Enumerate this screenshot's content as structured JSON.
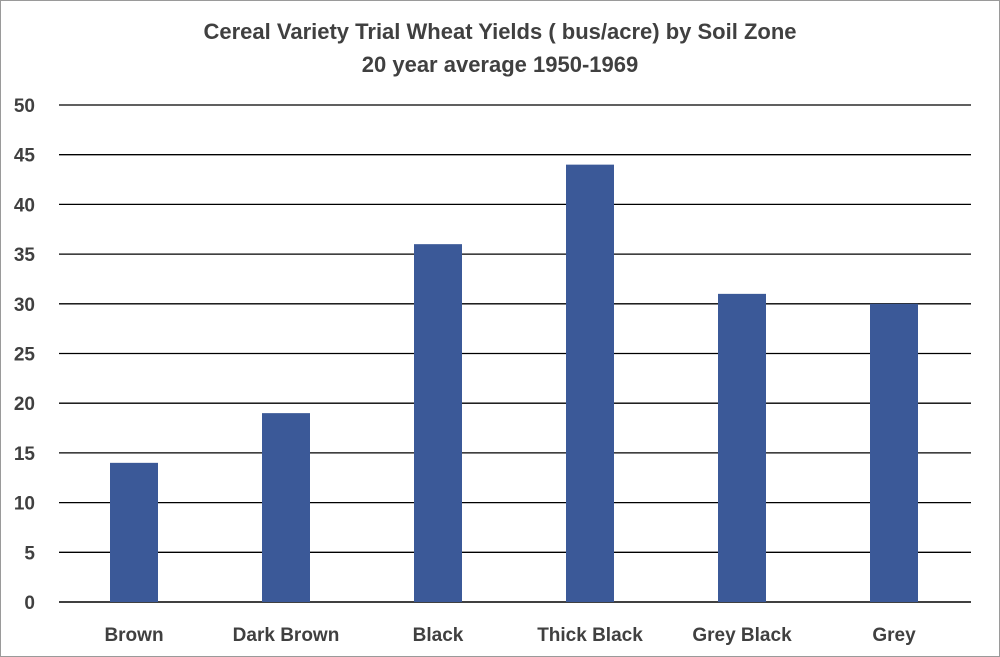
{
  "chart_data": {
    "type": "bar",
    "title": "Cereal Variety Trial  Wheat Yields ( bus/acre) by Soil Zone",
    "subtitle": "20 year average 1950-1969",
    "xlabel": "",
    "ylabel": "",
    "categories": [
      "Brown",
      "Dark Brown",
      "Black",
      "Thick Black",
      "Grey Black",
      "Grey"
    ],
    "values": [
      14,
      19,
      36,
      44,
      31,
      30
    ],
    "ylim": [
      0,
      50
    ],
    "yticks": [
      0,
      5,
      10,
      15,
      20,
      25,
      30,
      35,
      40,
      45,
      50
    ],
    "grid": true,
    "legend": "none",
    "bar_color": "#3b5998",
    "grid_color": "#000000"
  }
}
